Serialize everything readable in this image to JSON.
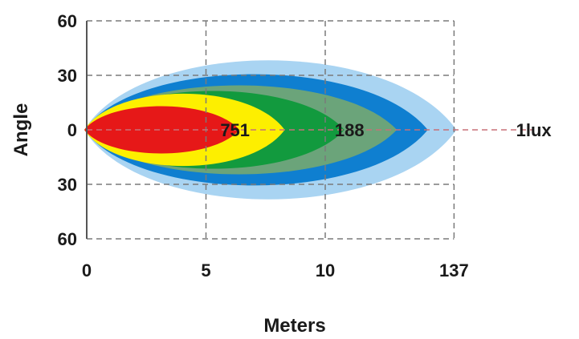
{
  "chart_data": {
    "type": "area",
    "title": "",
    "xlabel": "Meters",
    "ylabel": "Angle",
    "x_ticks": [
      "0",
      "5",
      "10",
      "137"
    ],
    "y_ticks": [
      "60",
      "30",
      "0",
      "30",
      "60"
    ],
    "xlim": [
      0,
      15
    ],
    "ylim": [
      -60,
      60
    ],
    "grid": true,
    "series": [
      {
        "max_distance_m": 15.5,
        "max_angle_deg": 50,
        "color": "#a9d4f2"
      },
      {
        "max_distance_m": 14.3,
        "max_angle_deg": 40,
        "color": "#0f7fd0"
      },
      {
        "max_distance_m": 13.0,
        "max_angle_deg": 32,
        "color": "#6ba47a"
      },
      {
        "max_distance_m": 10.8,
        "max_angle_deg": 28,
        "color": "#129a3e"
      },
      {
        "max_distance_m": 8.3,
        "max_angle_deg": 26,
        "color": "#fdef00"
      },
      {
        "max_distance_m": 6.4,
        "max_angle_deg": 17,
        "color": "#e61818"
      }
    ],
    "annotations": [
      {
        "text": "751",
        "x": 5.6,
        "y": 0
      },
      {
        "text": "188",
        "x": 10.4,
        "y": 0
      },
      {
        "text": "1lux",
        "x": 18.0,
        "y": 0
      }
    ]
  }
}
